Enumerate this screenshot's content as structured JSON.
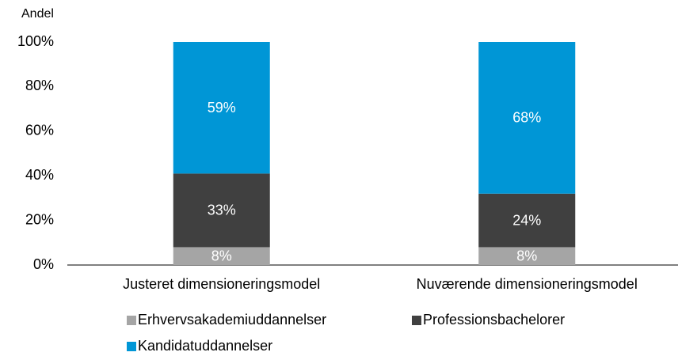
{
  "chart_data": {
    "type": "stacked_bar",
    "ylabel": "Andel",
    "categories": [
      "Justeret dimensioneringsmodel",
      "Nuværende dimensioneringsmodel"
    ],
    "series": [
      {
        "name": "Erhvervsakademiuddannelser",
        "color": "#a5a5a5",
        "values": [
          8,
          8
        ],
        "value_labels": [
          "8%",
          "8%"
        ]
      },
      {
        "name": "Professionsbachelorer",
        "color": "#404040",
        "values": [
          33,
          24
        ],
        "value_labels": [
          "33%",
          "24%"
        ]
      },
      {
        "name": "Kandidatuddannelser",
        "color": "#0096d6",
        "values": [
          59,
          68
        ],
        "value_labels": [
          "59%",
          "68%"
        ]
      }
    ],
    "ylim": [
      0,
      100
    ],
    "yticks": [
      {
        "value": 0,
        "label": "0%"
      },
      {
        "value": 20,
        "label": "20%"
      },
      {
        "value": 40,
        "label": "40%"
      },
      {
        "value": 60,
        "label": "60%"
      },
      {
        "value": 80,
        "label": "80%"
      },
      {
        "value": 100,
        "label": "100%"
      }
    ],
    "grid": false
  }
}
